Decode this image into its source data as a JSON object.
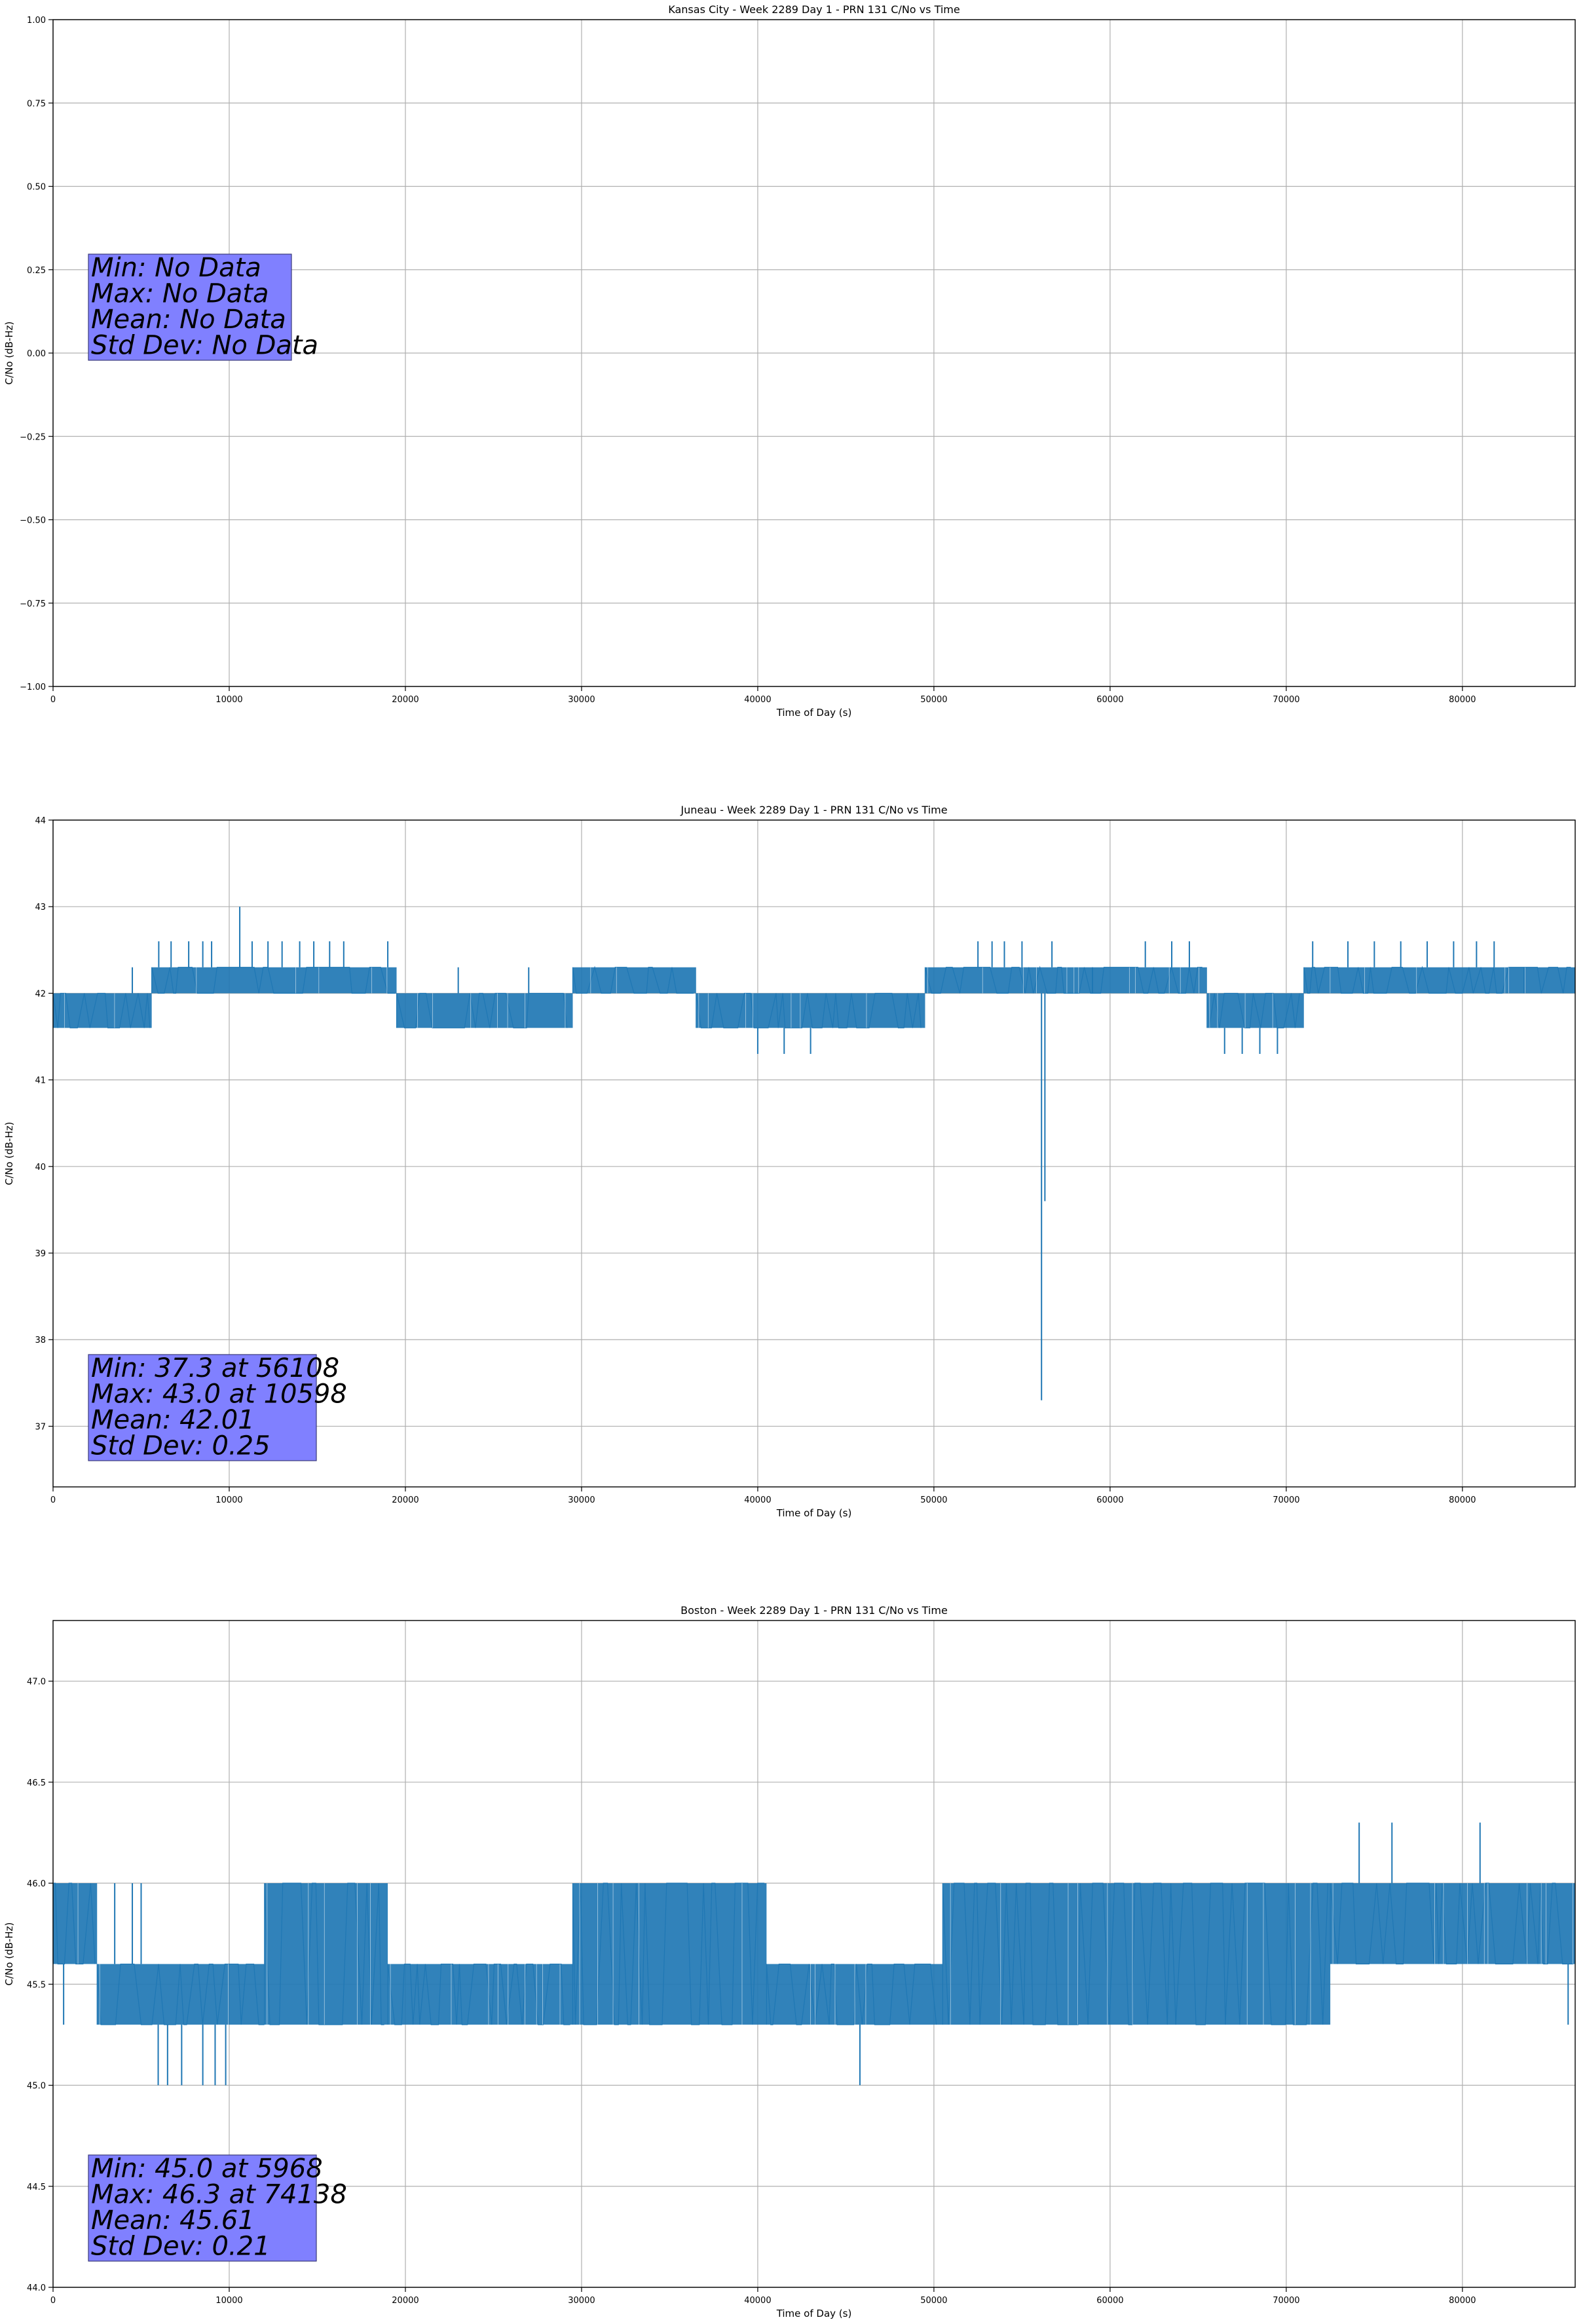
{
  "chart_data": [
    {
      "type": "line",
      "title": "Kansas City - Week 2289 Day 1 - PRN 131 C/No vs Time",
      "xlabel": "Time of Day (s)",
      "ylabel": "C/No (dB-Hz)",
      "xlim": [
        0,
        86400
      ],
      "ylim": [
        -1.0,
        1.0
      ],
      "x_ticks": [
        "0",
        "10000",
        "20000",
        "30000",
        "40000",
        "50000",
        "60000",
        "70000",
        "80000"
      ],
      "y_ticks": [
        "−1.00",
        "−0.75",
        "−0.50",
        "−0.25",
        "0.00",
        "0.25",
        "0.50",
        "0.75",
        "1.00"
      ],
      "grid": true,
      "series": [],
      "stats": [
        "Min: No Data",
        "Max: No Data",
        "Mean: No Data",
        "Std Dev: No Data"
      ]
    },
    {
      "type": "line",
      "title": "Juneau - Week 2289 Day 1 - PRN 131 C/No vs Time",
      "xlabel": "Time of Day (s)",
      "ylabel": "C/No (dB-Hz)",
      "xlim": [
        0,
        86400
      ],
      "ylim": [
        36.3,
        44.0
      ],
      "x_ticks": [
        "0",
        "10000",
        "20000",
        "30000",
        "40000",
        "50000",
        "60000",
        "70000",
        "80000"
      ],
      "y_ticks": [
        "37",
        "38",
        "39",
        "40",
        "41",
        "42",
        "43",
        "44"
      ],
      "grid": true,
      "color": "#1f77b4",
      "series": [
        {
          "bands": [
            {
              "x": [
                0,
                5600
              ],
              "y": [
                41.6,
                42.0
              ]
            },
            {
              "x": [
                5600,
                19500
              ],
              "y": [
                42.0,
                42.3
              ]
            },
            {
              "x": [
                19500,
                29500
              ],
              "y": [
                41.6,
                42.0
              ]
            },
            {
              "x": [
                29500,
                36500
              ],
              "y": [
                42.0,
                42.3
              ]
            },
            {
              "x": [
                36500,
                49500
              ],
              "y": [
                41.6,
                42.0
              ]
            },
            {
              "x": [
                49500,
                65500
              ],
              "y": [
                42.0,
                42.3
              ]
            },
            {
              "x": [
                65500,
                71000
              ],
              "y": [
                41.6,
                42.0
              ]
            },
            {
              "x": [
                71000,
                86400
              ],
              "y": [
                42.0,
                42.3
              ]
            }
          ],
          "spikes": [
            [
              4500,
              42.3
            ],
            [
              6000,
              42.6
            ],
            [
              6700,
              42.6
            ],
            [
              7700,
              42.6
            ],
            [
              8500,
              42.6
            ],
            [
              9000,
              42.6
            ],
            [
              10598,
              43.0
            ],
            [
              11300,
              42.6
            ],
            [
              12200,
              42.6
            ],
            [
              13000,
              42.6
            ],
            [
              14000,
              42.6
            ],
            [
              14800,
              42.6
            ],
            [
              15700,
              42.6
            ],
            [
              16500,
              42.6
            ],
            [
              19000,
              42.6
            ],
            [
              23000,
              42.3
            ],
            [
              27000,
              42.3
            ],
            [
              40000,
              41.3
            ],
            [
              41500,
              41.3
            ],
            [
              43000,
              41.3
            ],
            [
              52500,
              42.6
            ],
            [
              53300,
              42.6
            ],
            [
              54000,
              42.6
            ],
            [
              55000,
              42.6
            ],
            [
              56108,
              37.3
            ],
            [
              56300,
              39.6
            ],
            [
              56700,
              42.6
            ],
            [
              59000,
              42.3
            ],
            [
              62000,
              42.6
            ],
            [
              63500,
              42.6
            ],
            [
              64500,
              42.6
            ],
            [
              66500,
              41.3
            ],
            [
              67500,
              41.3
            ],
            [
              68500,
              41.3
            ],
            [
              69500,
              41.3
            ],
            [
              71500,
              42.6
            ],
            [
              73500,
              42.6
            ],
            [
              75000,
              42.6
            ],
            [
              76500,
              42.6
            ],
            [
              78000,
              42.6
            ],
            [
              79500,
              42.6
            ],
            [
              80800,
              42.6
            ],
            [
              81800,
              42.6
            ],
            [
              83500,
              42.3
            ]
          ]
        }
      ],
      "stats": [
        "Min: 37.3 at 56108",
        "Max: 43.0 at 10598",
        "Mean: 42.01",
        "Std Dev: 0.25"
      ]
    },
    {
      "type": "line",
      "title": "Boston - Week 2289 Day 1 - PRN 131 C/No vs Time",
      "xlabel": "Time of Day (s)",
      "ylabel": "C/No (dB-Hz)",
      "xlim": [
        0,
        86400
      ],
      "ylim": [
        44.0,
        47.3
      ],
      "x_ticks": [
        "0",
        "10000",
        "20000",
        "30000",
        "40000",
        "50000",
        "60000",
        "70000",
        "80000"
      ],
      "y_ticks": [
        "44.0",
        "44.5",
        "45.0",
        "45.5",
        "46.0",
        "46.5",
        "47.0"
      ],
      "grid": true,
      "color": "#1f77b4",
      "series": [
        {
          "bands": [
            {
              "x": [
                0,
                2500
              ],
              "y": [
                45.6,
                46.0
              ]
            },
            {
              "x": [
                2500,
                12000
              ],
              "y": [
                45.3,
                45.6
              ]
            },
            {
              "x": [
                12000,
                19000
              ],
              "y": [
                45.3,
                46.0
              ]
            },
            {
              "x": [
                19000,
                29500
              ],
              "y": [
                45.3,
                45.6
              ]
            },
            {
              "x": [
                29500,
                40500
              ],
              "y": [
                45.3,
                46.0
              ]
            },
            {
              "x": [
                40500,
                50500
              ],
              "y": [
                45.3,
                45.6
              ]
            },
            {
              "x": [
                50500,
                72500
              ],
              "y": [
                45.3,
                46.0
              ]
            },
            {
              "x": [
                72500,
                86400
              ],
              "y": [
                45.6,
                46.0
              ]
            }
          ],
          "spikes": [
            [
              3500,
              46.0
            ],
            [
              4500,
              46.0
            ],
            [
              5000,
              46.0
            ],
            [
              5968,
              45.0
            ],
            [
              6500,
              45.0
            ],
            [
              7300,
              45.0
            ],
            [
              8500,
              45.0
            ],
            [
              9200,
              45.0
            ],
            [
              9800,
              45.0
            ],
            [
              45800,
              45.0
            ],
            [
              74138,
              46.3
            ],
            [
              76000,
              46.3
            ],
            [
              81000,
              46.3
            ],
            [
              86000,
              45.3
            ],
            [
              600,
              45.3
            ]
          ]
        }
      ],
      "stats": [
        "Min: 45.0 at 5968",
        "Max: 46.3 at 74138",
        "Mean: 45.61",
        "Std Dev: 0.21"
      ]
    }
  ]
}
